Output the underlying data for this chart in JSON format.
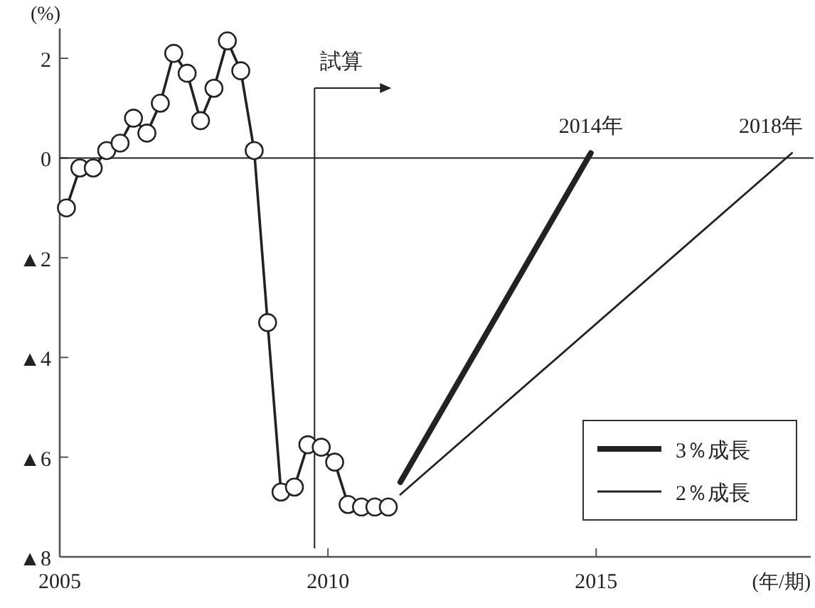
{
  "chart_data": {
    "type": "line",
    "xlabel": "(年/期)",
    "ylabel": "(%)",
    "xlim": [
      2005,
      2019
    ],
    "ylim": [
      -8,
      2.6
    ],
    "xticks": [
      2005,
      2010,
      2015
    ],
    "yticks": [
      {
        "value": -8,
        "label": "▲8"
      },
      {
        "value": -6,
        "label": "▲6"
      },
      {
        "value": -4,
        "label": "▲4"
      },
      {
        "value": -2,
        "label": "▲2"
      },
      0,
      2
    ],
    "series": [
      {
        "color": "#222222",
        "marker": "circle",
        "x": [
          2005.125,
          2005.375,
          2005.625,
          2005.875,
          2006.125,
          2006.375,
          2006.625,
          2006.875,
          2007.125,
          2007.375,
          2007.625,
          2007.875,
          2008.125,
          2008.375,
          2008.625,
          2008.875,
          2009.125,
          2009.375,
          2009.625,
          2009.875,
          2010.125,
          2010.375,
          2010.625,
          2010.875,
          2011.125
        ],
        "values": [
          -1.0,
          -0.2,
          -0.2,
          0.15,
          0.3,
          0.8,
          0.5,
          1.1,
          2.1,
          1.7,
          0.75,
          1.4,
          2.35,
          1.75,
          0.15,
          -3.3,
          -6.7,
          -6.6,
          -5.75,
          -5.8,
          -6.1,
          -6.95,
          -7.0,
          -7.0,
          -7.0
        ]
      },
      {
        "name": "3％成長",
        "color": "#222222",
        "x": [
          2011.35,
          2014.9
        ],
        "values": [
          -6.5,
          0.1
        ]
      },
      {
        "name": "2％成長",
        "color": "#222222",
        "x": [
          2011.35,
          2018.65
        ],
        "values": [
          -6.75,
          0.1
        ]
      }
    ],
    "ref_lines": [
      {
        "axis": "y",
        "value": 0,
        "color": "#222222"
      },
      {
        "axis": "x",
        "value": 2009.75,
        "label": "試算",
        "color": "#222222"
      }
    ],
    "annotations": [
      {
        "text": "2014年",
        "x": 2014.9,
        "y": 0.1
      },
      {
        "text": "2018年",
        "x": 2018.65,
        "y": 0.1
      }
    ],
    "legend": "bottom right",
    "grid": false
  }
}
